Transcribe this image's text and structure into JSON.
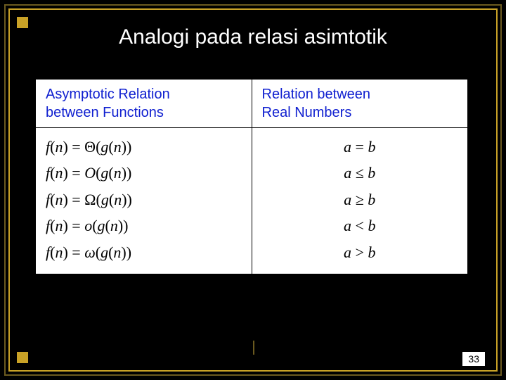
{
  "title": "Analogi pada relasi asimtotik",
  "pageNumber": "33",
  "headers": {
    "left": "Asymptotic Relation between Functions",
    "right": "Relation between Real Numbers"
  },
  "colors": {
    "background": "#000000",
    "outerBorder": "#6b5a1f",
    "innerBorder": "#c9a227",
    "headerText": "#1020d0",
    "tableBg": "#ffffff"
  },
  "rows": [
    {
      "lhs": "f(n) = Θ(g(n))",
      "rhs": "a = b"
    },
    {
      "lhs": "f(n) = O(g(n))",
      "rhs": "a ≤ b"
    },
    {
      "lhs": "f(n) = Ω(g(n))",
      "rhs": "a ≥ b"
    },
    {
      "lhs": "f(n) = o(g(n))",
      "rhs": "a < b"
    },
    {
      "lhs": "f(n) = ω(g(n))",
      "rhs": "a > b"
    }
  ],
  "typography": {
    "titleFontSize": 30,
    "headerFontSize": 20,
    "cellFontSize": 22
  }
}
